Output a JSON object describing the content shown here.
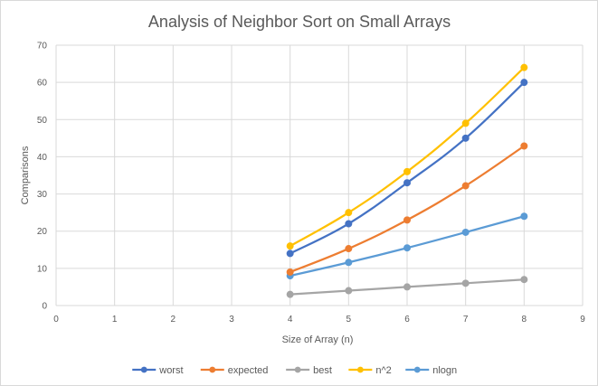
{
  "chart_data": {
    "type": "scatter",
    "title": "Analysis of Neighbor Sort on Small Arrays",
    "xlabel": "Size of Array (n)",
    "ylabel": "Comparisons",
    "xlim": [
      0,
      9
    ],
    "ylim": [
      0,
      70
    ],
    "x_ticks": [
      0,
      1,
      2,
      3,
      4,
      5,
      6,
      7,
      8,
      9
    ],
    "y_ticks": [
      0,
      10,
      20,
      30,
      40,
      50,
      60,
      70
    ],
    "grid": true,
    "legend_position": "bottom",
    "series": [
      {
        "name": "worst",
        "color": "#4472C4",
        "x": [
          4,
          5,
          6,
          7,
          8
        ],
        "y": [
          14,
          22,
          33,
          45,
          60
        ]
      },
      {
        "name": "expected",
        "color": "#ED7D31",
        "x": [
          4,
          5,
          6,
          7,
          8
        ],
        "y": [
          9,
          15.3,
          23,
          32.2,
          42.9
        ]
      },
      {
        "name": "best",
        "color": "#A5A5A5",
        "x": [
          4,
          5,
          6,
          7,
          8
        ],
        "y": [
          3,
          4,
          5,
          6,
          7
        ]
      },
      {
        "name": "n^2",
        "color": "#FFC000",
        "x": [
          4,
          5,
          6,
          7,
          8
        ],
        "y": [
          16,
          25,
          36,
          49,
          64
        ]
      },
      {
        "name": "nlogn",
        "color": "#5B9BD5",
        "x": [
          4,
          5,
          6,
          7,
          8
        ],
        "y": [
          8,
          11.6,
          15.5,
          19.7,
          24
        ]
      }
    ]
  }
}
